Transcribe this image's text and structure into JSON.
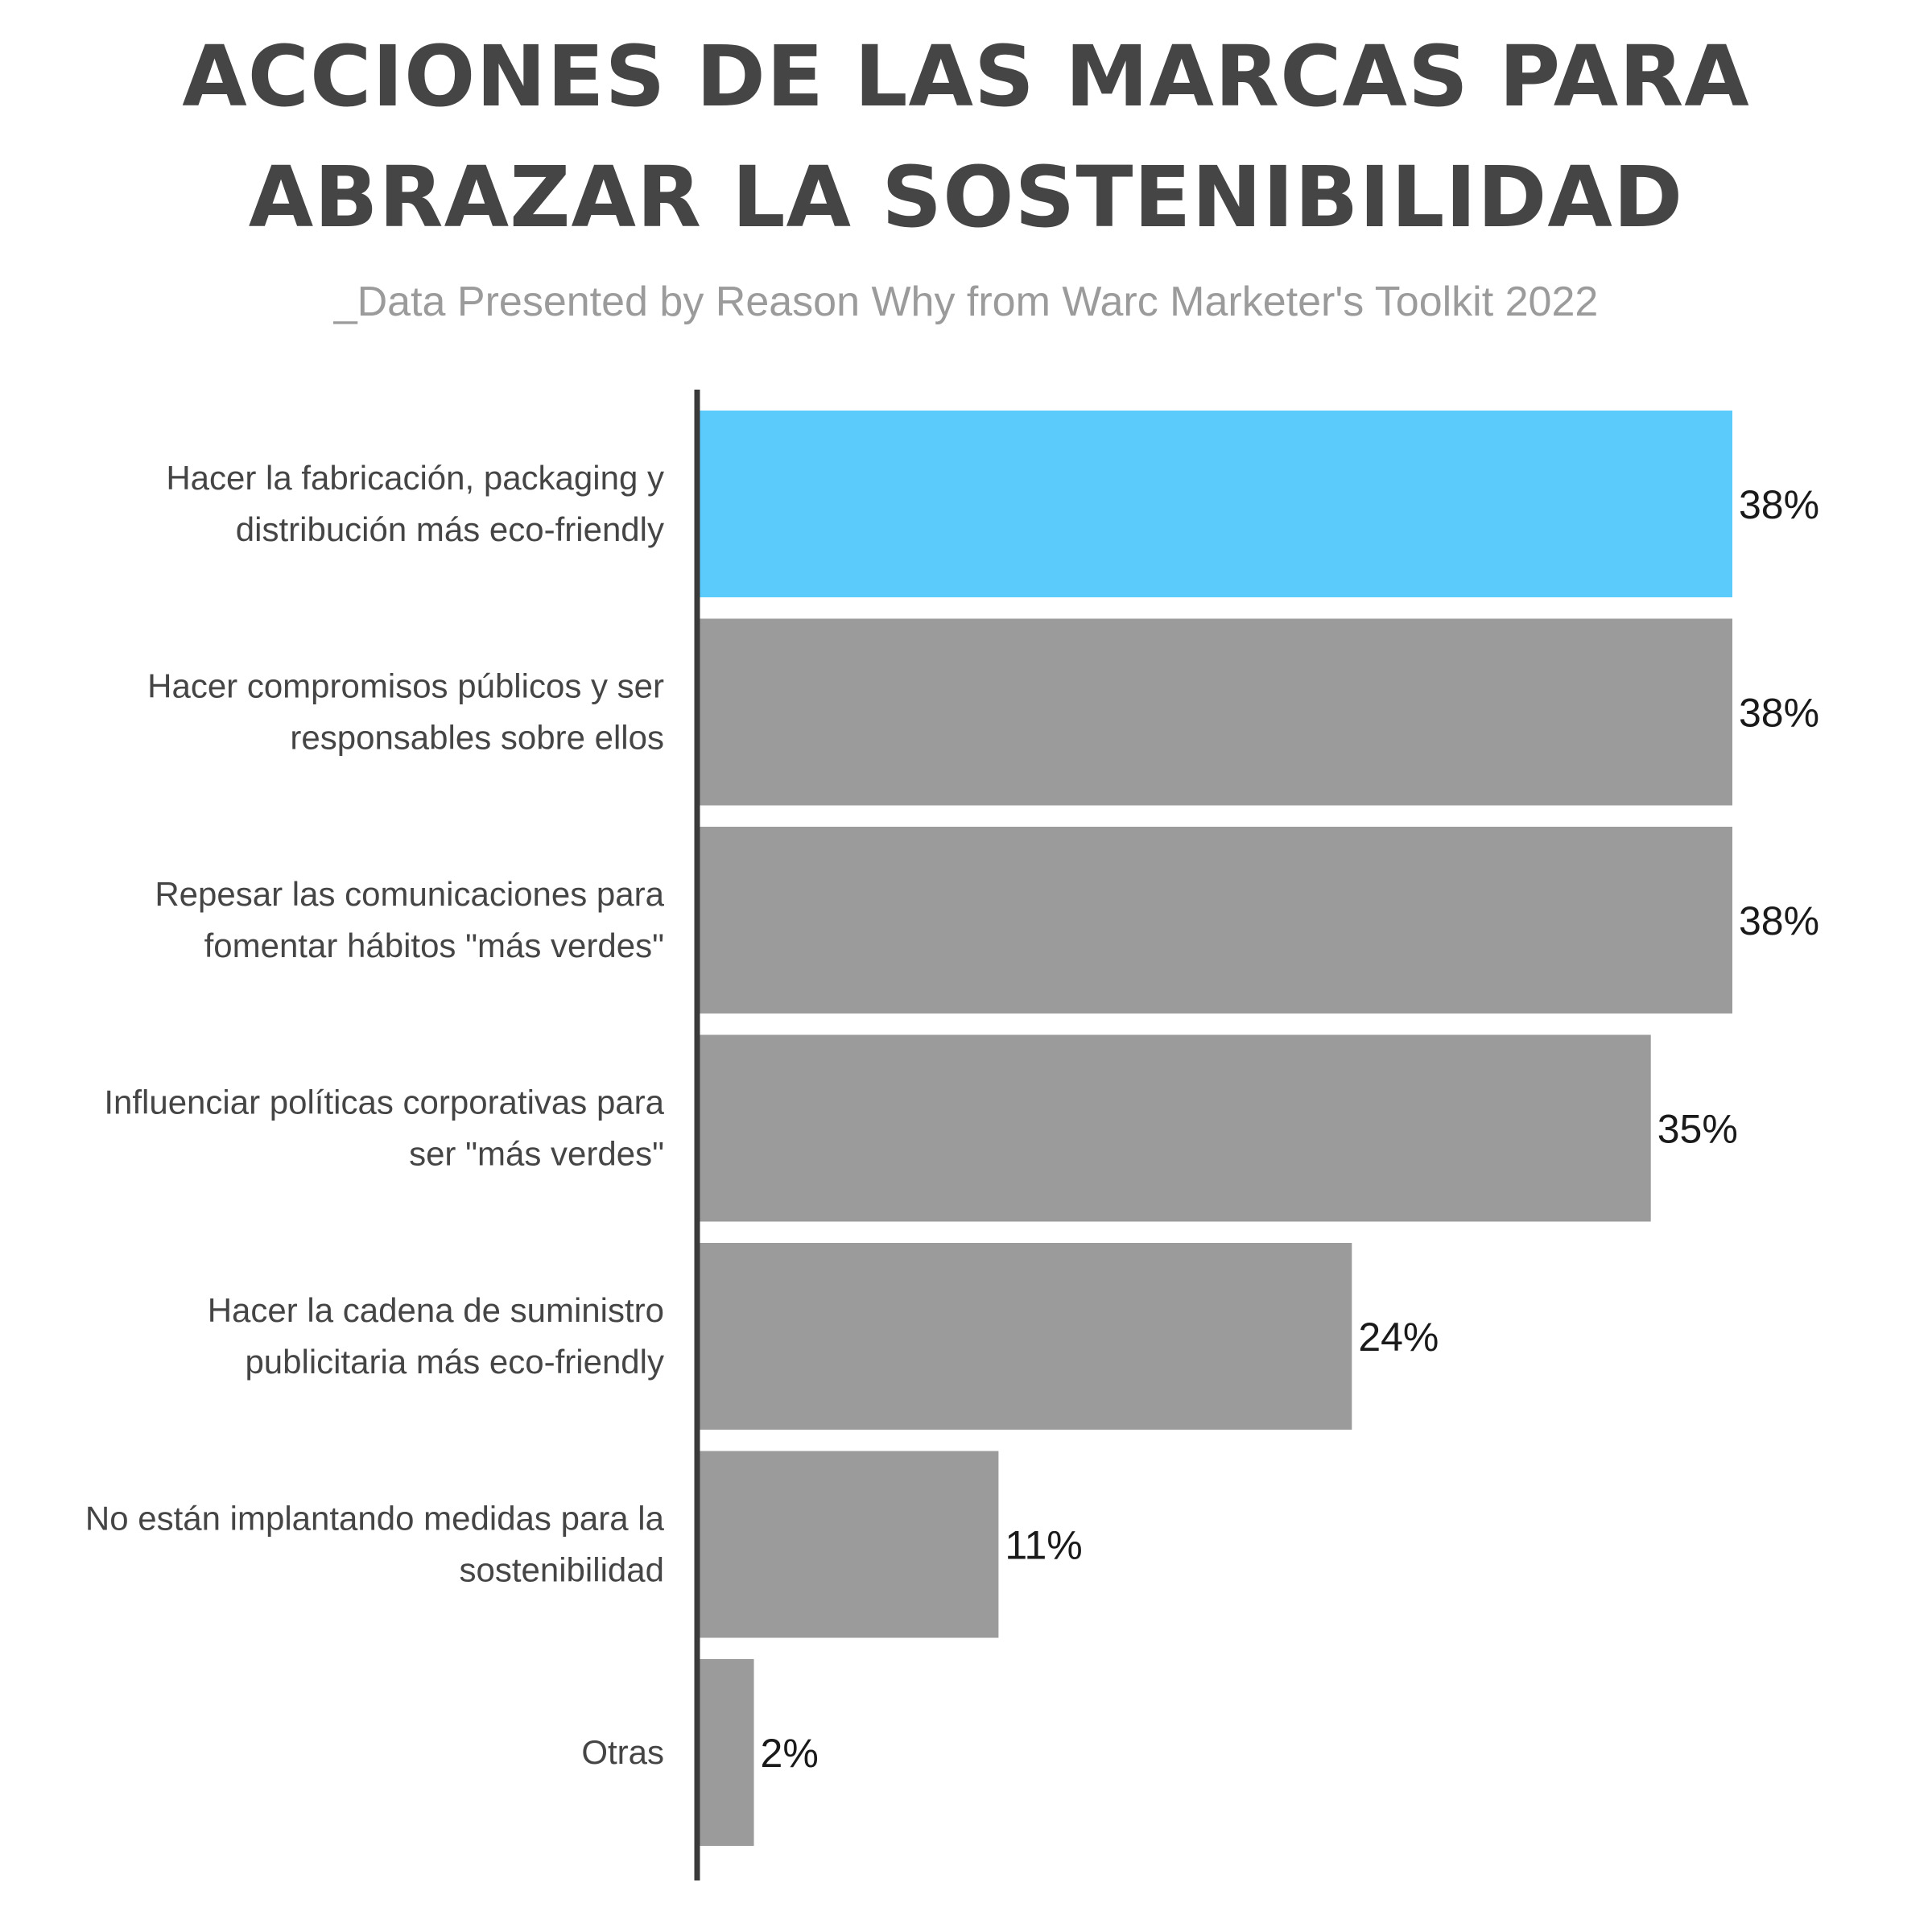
{
  "chart_data": {
    "type": "bar",
    "orientation": "horizontal",
    "title": "ACCIONES DE LAS MARCAS PARA ABRAZAR LA SOSTENIBILIDAD",
    "subtitle": "_Data Presented by Reason Why from Warc Marketer's Toolkit 2022",
    "categories": [
      [
        "Hacer la fabricación, packaging y",
        "distribución más eco-friendly"
      ],
      [
        "Hacer compromisos públicos y ser",
        "responsables sobre ellos"
      ],
      [
        "Repesar las comunicaciones para",
        "fomentar hábitos \"más verdes\""
      ],
      [
        "Influenciar políticas corporativas para",
        "ser \"más verdes\""
      ],
      [
        "Hacer la cadena de suministro",
        "publicitaria más eco-friendly"
      ],
      [
        "No están implantando medidas para la",
        "sostenibilidad"
      ],
      [
        "Otras"
      ]
    ],
    "values": [
      38,
      38,
      38,
      35,
      24,
      11,
      2
    ],
    "value_labels": [
      "38%",
      "38%",
      "38%",
      "35%",
      "24%",
      "11%",
      "2%"
    ],
    "unit": "%",
    "xlim": [
      0,
      38
    ],
    "highlight_index": 0,
    "colors": {
      "highlight": "#5bcbfc",
      "bar": "#9b9b9b",
      "axis": "#3a3a3a"
    },
    "grid": false,
    "legend": "none"
  }
}
